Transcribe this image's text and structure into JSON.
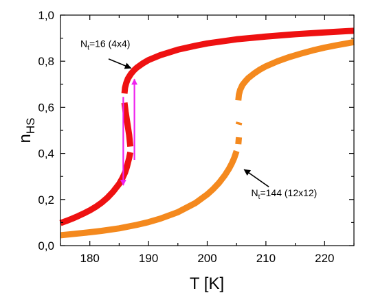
{
  "chart_data": {
    "type": "line",
    "xlabel": "T [K]",
    "ylabel": {
      "main": "n",
      "sub": "HS"
    },
    "xlim": [
      175,
      225
    ],
    "ylim": [
      0.0,
      1.0
    ],
    "xticks": [
      180,
      190,
      200,
      210,
      220
    ],
    "yticks": [
      0.0,
      0.2,
      0.4,
      0.6,
      0.8,
      1.0
    ],
    "ytick_labels": [
      "0,0",
      "0,2",
      "0,4",
      "0,6",
      "0,8",
      "1,0"
    ],
    "grid": false,
    "series": [
      {
        "color": "#ee1111",
        "segments": [
          {
            "x": [
              175,
              176,
              177,
              178,
              179,
              180,
              181,
              182,
              183,
              184,
              185,
              185.5,
              186,
              186.3,
              186.5,
              186.7,
              186.9
            ],
            "y": [
              0.098,
              0.107,
              0.117,
              0.128,
              0.14,
              0.153,
              0.168,
              0.186,
              0.208,
              0.235,
              0.268,
              0.29,
              0.317,
              0.34,
              0.36,
              0.38,
              0.405
            ]
          },
          {
            "x": [
              186.9,
              186.7,
              186.4,
              186.1,
              185.9
            ],
            "y": [
              0.43,
              0.48,
              0.53,
              0.58,
              0.62
            ]
          },
          {
            "x": [
              185.9,
              186.0,
              186.2,
              186.5,
              187.0,
              187.5,
              188,
              189,
              190,
              192,
              195,
              198,
              200,
              205,
              210,
              215,
              220,
              225
            ],
            "y": [
              0.66,
              0.685,
              0.705,
              0.725,
              0.745,
              0.76,
              0.772,
              0.79,
              0.805,
              0.826,
              0.85,
              0.867,
              0.877,
              0.895,
              0.907,
              0.917,
              0.925,
              0.932
            ]
          }
        ]
      },
      {
        "color": "#f4891e",
        "segments": [
          {
            "x": [
              175,
              177,
              180,
              182,
              185,
              188,
              190,
              192,
              195,
              198,
              200,
              201,
              202,
              203,
              203.7,
              204.2,
              204.6,
              205.0
            ],
            "y": [
              0.045,
              0.05,
              0.058,
              0.064,
              0.075,
              0.09,
              0.102,
              0.117,
              0.145,
              0.185,
              0.222,
              0.245,
              0.272,
              0.305,
              0.333,
              0.357,
              0.38,
              0.41
            ]
          },
          {
            "x": [
              205.3,
              205.35,
              205.4
            ],
            "y": [
              0.44,
              0.455,
              0.47
            ]
          },
          {
            "x": [
              205.35,
              205.45
            ],
            "y": [
              0.525,
              0.535
            ]
          },
          {
            "x": [
              205.3,
              205.4,
              205.6,
              206,
              206.5,
              207,
              208,
              209,
              210,
              212,
              214,
              216,
              218,
              220,
              222,
              225
            ],
            "y": [
              0.63,
              0.655,
              0.675,
              0.697,
              0.713,
              0.727,
              0.747,
              0.764,
              0.778,
              0.8,
              0.818,
              0.833,
              0.847,
              0.859,
              0.869,
              0.883
            ]
          }
        ]
      }
    ],
    "arrows": [
      {
        "color": "#ee22ee",
        "x": 187.6,
        "from_y": 0.372,
        "to_y": 0.722
      },
      {
        "color": "#ee22ee",
        "x": 185.7,
        "from_y": 0.645,
        "to_y": 0.262
      }
    ],
    "annotations": [
      {
        "label_main": "N",
        "label_sub": "t",
        "label_rest": "=16 (4x4)",
        "text_x": 178.4,
        "text_y": 0.862,
        "arrow_from": [
          183.2,
          0.81
        ],
        "arrow_to": [
          187.0,
          0.77
        ]
      },
      {
        "label_main": "N",
        "label_sub": "t",
        "label_rest": "=144 (12x12)",
        "text_x": 207.5,
        "text_y": 0.215,
        "arrow_from": [
          210.5,
          0.255
        ],
        "arrow_to": [
          206.3,
          0.33
        ]
      }
    ]
  }
}
